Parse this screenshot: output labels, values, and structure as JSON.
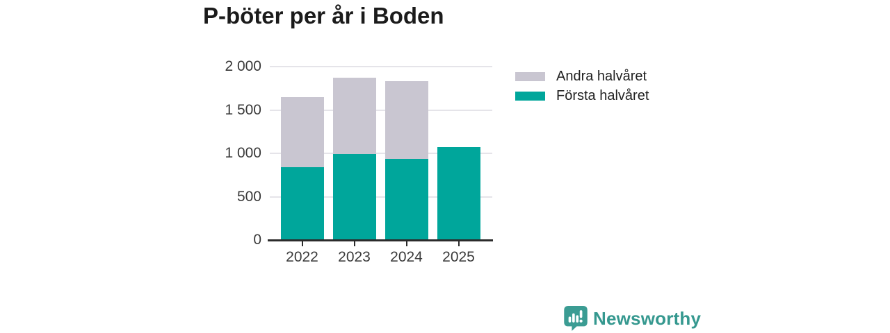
{
  "title": "P-böter per år i Boden",
  "chart_data": {
    "type": "bar",
    "stacked": true,
    "title": "P-böter per år i Boden",
    "categories": [
      "2022",
      "2023",
      "2024",
      "2025"
    ],
    "series": [
      {
        "name": "Första halvåret",
        "color": "#00a69b",
        "values": [
          840,
          995,
          940,
          1070
        ]
      },
      {
        "name": "Andra halvåret",
        "color": "#c9c6d1",
        "values": [
          810,
          875,
          895,
          0
        ]
      }
    ],
    "totals": [
      1650,
      1870,
      1835,
      1070
    ],
    "xlabel": "",
    "ylabel": "",
    "ylim": [
      0,
      2000
    ],
    "ytick_values": [
      0,
      500,
      1000,
      1500,
      2000
    ],
    "ytick_labels": [
      "0",
      "500",
      "1 000",
      "1 500",
      "2 000"
    ],
    "grid": true,
    "legend_position": "right",
    "legend": [
      {
        "label": "Andra halvåret",
        "color": "#c9c6d1"
      },
      {
        "label": "Första halvåret",
        "color": "#00a69b"
      }
    ]
  },
  "branding": {
    "logo_text": "Newsworthy",
    "logo_color": "#35988f",
    "logo_icon": "speech-bubble-bar-chart-icon"
  },
  "colors": {
    "first_half": "#00a69b",
    "second_half": "#c9c6d1",
    "axis": "#2b2b2b",
    "gridline": "#e5e4e9",
    "text": "#3a3a3a",
    "title_text": "#1b1b1b"
  }
}
